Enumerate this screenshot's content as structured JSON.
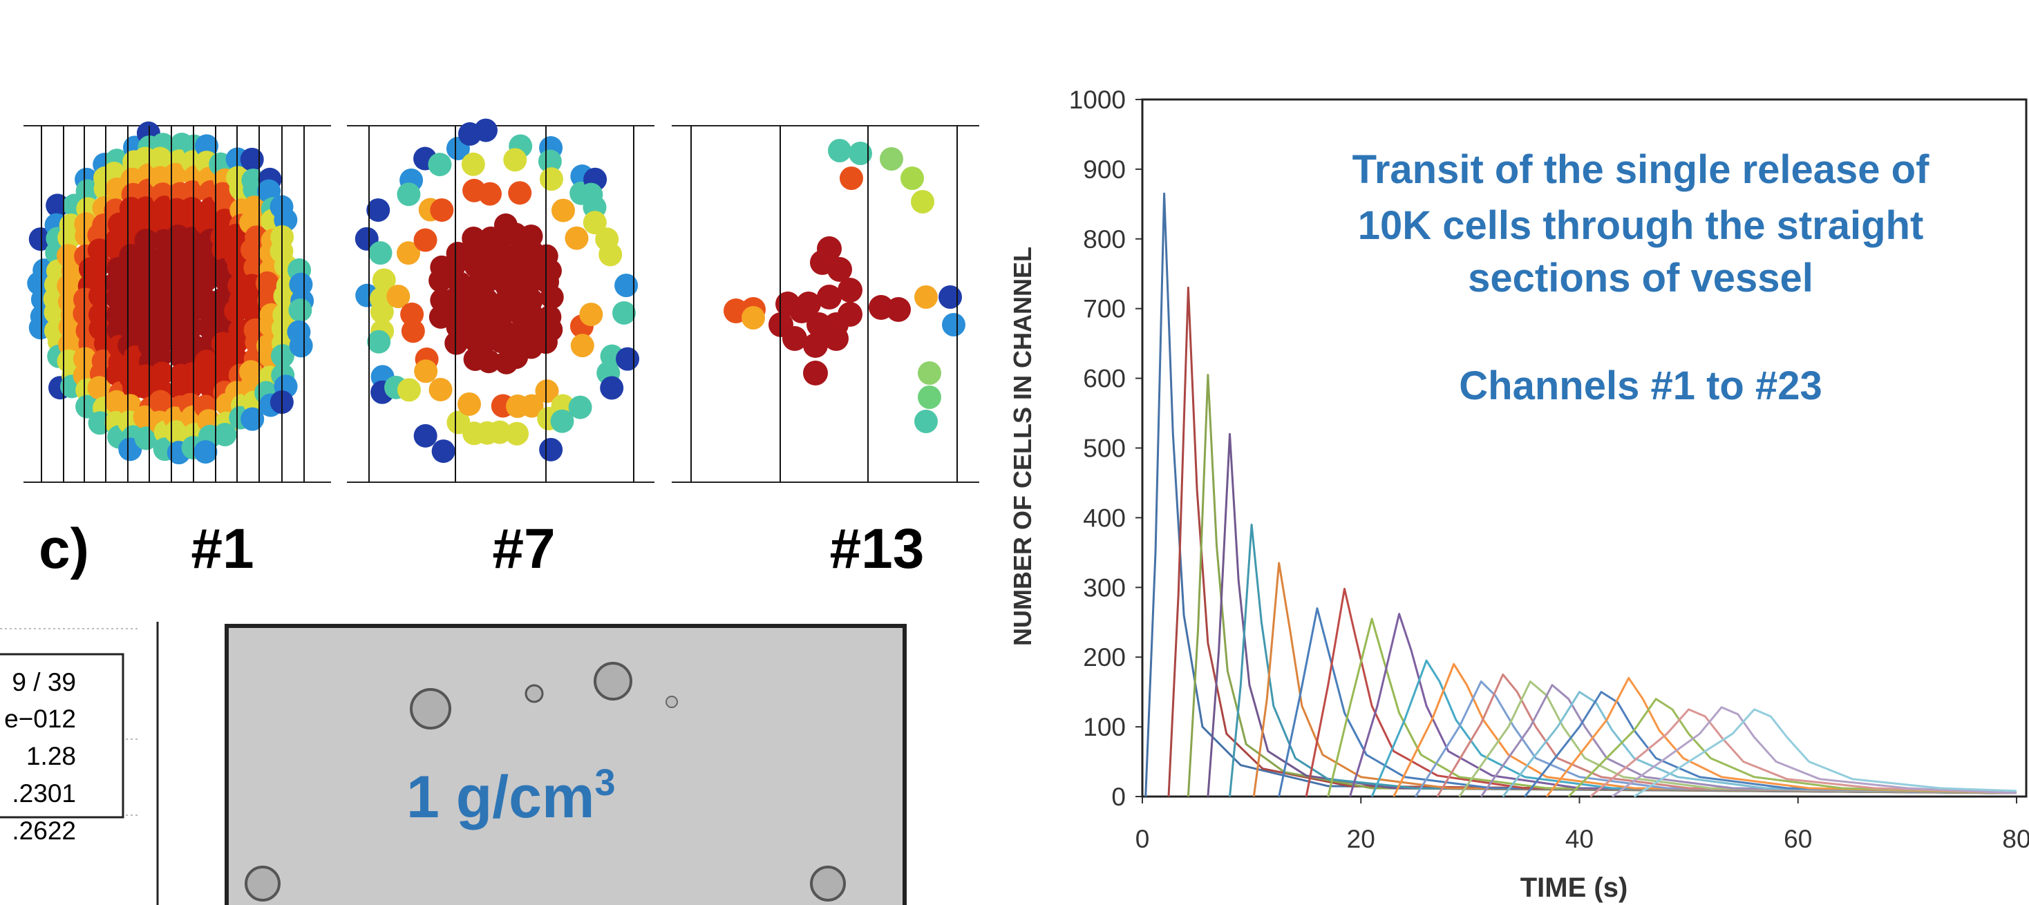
{
  "panel_labels": {
    "panel": "c)",
    "views": [
      "#1",
      "#7",
      "#13"
    ]
  },
  "stats_box": [
    "9 / 39",
    "e−012",
    "1.28",
    ".2301",
    ".2622"
  ],
  "micrograph_label": {
    "text": "1 g/cm",
    "superscript": "3"
  },
  "chart_data": {
    "type": "line",
    "annotations": [
      "Transit of the single release of",
      "10K cells through the straight",
      "sections of vessel",
      "Channels #1 to #23"
    ],
    "y_label": "NUMBER OF CELLS IN CHANNEL",
    "x_label": "TIME (s)",
    "xlim": [
      0,
      80
    ],
    "xticks": [
      0,
      20,
      40,
      60,
      80
    ],
    "ylim": [
      0,
      1000
    ],
    "yticks": [
      0,
      100,
      200,
      300,
      400,
      500,
      600,
      700,
      800,
      900,
      1000
    ],
    "series": [
      {
        "color": "#4572a7",
        "x": [
          0.3,
          1.2,
          2,
          2.8,
          3.8,
          5.5,
          9,
          17,
          80
        ],
        "values": [
          0,
          350,
          865,
          520,
          260,
          100,
          45,
          15,
          5
        ]
      },
      {
        "color": "#aa4643",
        "x": [
          2.4,
          3.3,
          4.2,
          5,
          6,
          7.7,
          11,
          19,
          80
        ],
        "values": [
          0,
          290,
          730,
          440,
          220,
          90,
          40,
          15,
          5
        ]
      },
      {
        "color": "#89a54e",
        "x": [
          4.2,
          5.1,
          6,
          6.8,
          7.8,
          9.5,
          13,
          21,
          80
        ],
        "values": [
          0,
          240,
          605,
          360,
          180,
          75,
          35,
          12,
          5
        ]
      },
      {
        "color": "#71588f",
        "x": [
          6,
          7,
          8,
          8.8,
          9.8,
          11.5,
          15,
          23,
          80
        ],
        "values": [
          0,
          210,
          520,
          310,
          160,
          65,
          30,
          12,
          5
        ]
      },
      {
        "color": "#4198af",
        "x": [
          8,
          9,
          10,
          10.9,
          12,
          14,
          17,
          25,
          80
        ],
        "values": [
          0,
          160,
          390,
          250,
          130,
          55,
          25,
          12,
          5
        ]
      },
      {
        "color": "#db843d",
        "x": [
          10.2,
          11.4,
          12.5,
          13.5,
          14.6,
          16.5,
          20,
          28,
          80
        ],
        "values": [
          0,
          140,
          335,
          240,
          130,
          60,
          28,
          12,
          5
        ]
      },
      {
        "color": "#4a7ebb",
        "x": [
          12.5,
          14.5,
          16,
          17,
          18.5,
          20.5,
          24,
          32,
          80
        ],
        "values": [
          0,
          150,
          270,
          210,
          120,
          60,
          28,
          12,
          5
        ]
      },
      {
        "color": "#be4b48",
        "x": [
          15,
          17,
          18.5,
          19.5,
          21,
          23,
          27,
          35,
          80
        ],
        "values": [
          0,
          160,
          298,
          230,
          130,
          65,
          30,
          12,
          5
        ]
      },
      {
        "color": "#98b954",
        "x": [
          17,
          19,
          21,
          22,
          23.5,
          25.5,
          29,
          37,
          80
        ],
        "values": [
          0,
          130,
          255,
          200,
          120,
          60,
          28,
          12,
          5
        ]
      },
      {
        "color": "#7d60a0",
        "x": [
          19,
          21.5,
          23.5,
          24.6,
          26,
          28,
          32,
          40,
          80
        ],
        "values": [
          0,
          130,
          262,
          210,
          130,
          65,
          30,
          12,
          5
        ]
      },
      {
        "color": "#46aac5",
        "x": [
          21,
          24,
          26,
          27.2,
          28.7,
          31,
          35,
          43,
          80
        ],
        "values": [
          0,
          110,
          195,
          165,
          110,
          60,
          28,
          12,
          5
        ]
      },
      {
        "color": "#f69240",
        "x": [
          23,
          26.5,
          28.5,
          29.7,
          31.2,
          33.5,
          37,
          45,
          80
        ],
        "values": [
          0,
          110,
          190,
          160,
          110,
          60,
          28,
          12,
          5
        ]
      },
      {
        "color": "#7c9fd1",
        "x": [
          25,
          29,
          31,
          32.3,
          34,
          36,
          40,
          48,
          80
        ],
        "values": [
          0,
          100,
          165,
          145,
          100,
          55,
          28,
          12,
          5
        ]
      },
      {
        "color": "#d0837f",
        "x": [
          27,
          31,
          33,
          34.3,
          36,
          38,
          42,
          50,
          80
        ],
        "values": [
          0,
          105,
          175,
          150,
          100,
          55,
          28,
          12,
          5
        ]
      },
      {
        "color": "#a9c57f",
        "x": [
          29,
          33.5,
          35.5,
          37,
          38.5,
          40.5,
          44,
          52,
          80
        ],
        "values": [
          0,
          100,
          165,
          145,
          100,
          55,
          28,
          12,
          5
        ]
      },
      {
        "color": "#9d8bb8",
        "x": [
          31,
          35.5,
          37.5,
          39,
          40.5,
          42.5,
          46,
          54,
          80
        ],
        "values": [
          0,
          100,
          160,
          140,
          100,
          55,
          28,
          12,
          5
        ]
      },
      {
        "color": "#7ec0d4",
        "x": [
          33,
          38,
          40,
          41.5,
          43,
          45,
          49,
          57,
          80
        ],
        "values": [
          0,
          100,
          150,
          135,
          95,
          55,
          28,
          12,
          5
        ]
      },
      {
        "color": "#4f81bd",
        "x": [
          35,
          40,
          42,
          43.5,
          45,
          47,
          51,
          59,
          80
        ],
        "values": [
          0,
          100,
          150,
          135,
          95,
          55,
          28,
          12,
          5
        ]
      },
      {
        "color": "#f79646",
        "x": [
          37,
          42.5,
          44.5,
          45.8,
          47.3,
          49.5,
          53,
          61,
          80
        ],
        "values": [
          0,
          110,
          170,
          140,
          95,
          55,
          28,
          12,
          5
        ]
      },
      {
        "color": "#9bbb59",
        "x": [
          39,
          45,
          47,
          48.5,
          50,
          52,
          56,
          64,
          80
        ],
        "values": [
          0,
          95,
          140,
          125,
          90,
          55,
          28,
          12,
          5
        ]
      },
      {
        "color": "#d99694",
        "x": [
          41,
          48,
          50,
          51.5,
          53,
          55,
          59,
          67,
          80
        ],
        "values": [
          0,
          90,
          125,
          115,
          85,
          50,
          25,
          12,
          5
        ]
      },
      {
        "color": "#b3a2c7",
        "x": [
          43,
          51,
          53,
          54.5,
          56,
          58,
          62,
          70,
          80
        ],
        "values": [
          0,
          90,
          128,
          118,
          85,
          50,
          25,
          12,
          5
        ]
      },
      {
        "color": "#93cddd",
        "x": [
          45,
          54,
          56,
          57.5,
          59,
          61,
          65,
          73,
          80
        ],
        "values": [
          0,
          90,
          125,
          115,
          85,
          50,
          25,
          12,
          8
        ]
      }
    ]
  }
}
